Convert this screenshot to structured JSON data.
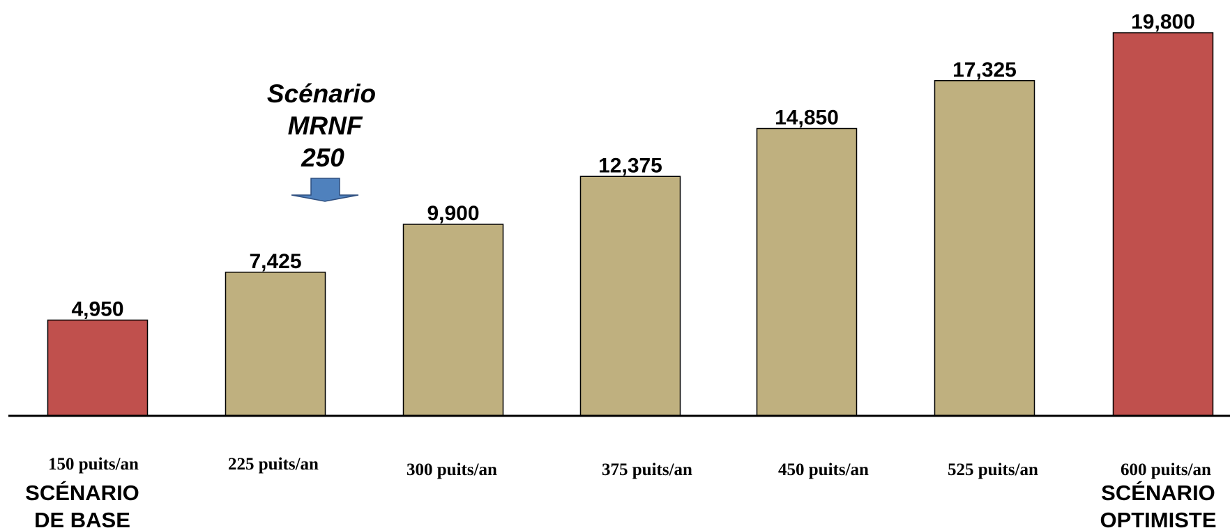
{
  "chart_data": {
    "type": "bar",
    "categories": [
      "150 puits/an",
      "225 puits/an",
      "300 puits/an",
      "375 puits/an",
      "450 puits/an",
      "525 puits/an",
      "600 puits/an"
    ],
    "values": [
      4950,
      7425,
      9900,
      12375,
      14850,
      17325,
      19800
    ],
    "value_labels": [
      "4,950",
      "7,425",
      "9,900",
      "12,375",
      "14,850",
      "17,325",
      "19,800"
    ],
    "bar_colors": [
      "#c0504d",
      "#bfb07f",
      "#bfb07f",
      "#bfb07f",
      "#bfb07f",
      "#bfb07f",
      "#c0504d"
    ],
    "ylim": [
      0,
      20000
    ],
    "grid": false,
    "annotations": {
      "base_scenario": [
        "SCÉNARIO",
        "DE BASE"
      ],
      "optimistic_scenario": [
        "SCÉNARIO",
        "OPTIMISTE"
      ],
      "mrnf_scenario": [
        "Scénario",
        "MRNF",
        "250"
      ],
      "arrow_color": "#4f81bd"
    }
  }
}
